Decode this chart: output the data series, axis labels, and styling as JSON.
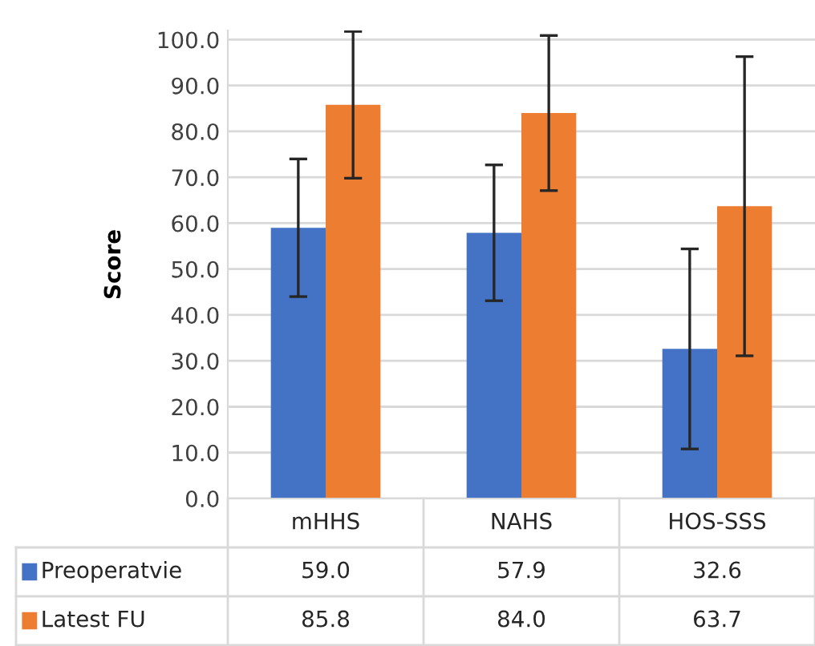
{
  "chart_data": {
    "type": "bar",
    "ylabel": "Score",
    "categories": [
      "mHHS",
      "NAHS",
      "HOS-SSS"
    ],
    "series": [
      {
        "name": "Preoperatvie",
        "color": "#4472c4",
        "values": [
          59.0,
          57.9,
          32.6
        ],
        "value_labels": [
          "59.0",
          "57.9",
          "32.6"
        ],
        "errors": [
          15.0,
          14.8,
          21.8
        ]
      },
      {
        "name": "Latest FU",
        "color": "#ed7d31",
        "values": [
          85.8,
          84.0,
          63.7
        ],
        "value_labels": [
          "85.8",
          "84.0",
          "63.7"
        ],
        "errors": [
          16.0,
          16.9,
          32.6
        ]
      }
    ],
    "ylim": [
      0,
      102
    ],
    "yticks": [
      {
        "value": 0,
        "label": "0.0"
      },
      {
        "value": 10,
        "label": "10.0"
      },
      {
        "value": 20,
        "label": "20.0"
      },
      {
        "value": 30,
        "label": "30.0"
      },
      {
        "value": 40,
        "label": "40.0"
      },
      {
        "value": 50,
        "label": "50.0"
      },
      {
        "value": 60,
        "label": "60.0"
      },
      {
        "value": 70,
        "label": "70.0"
      },
      {
        "value": 80,
        "label": "80.0"
      },
      {
        "value": 90,
        "label": "90.0"
      },
      {
        "value": 100,
        "label": "100.0"
      }
    ],
    "grid": "y",
    "legend": "bottom left"
  }
}
